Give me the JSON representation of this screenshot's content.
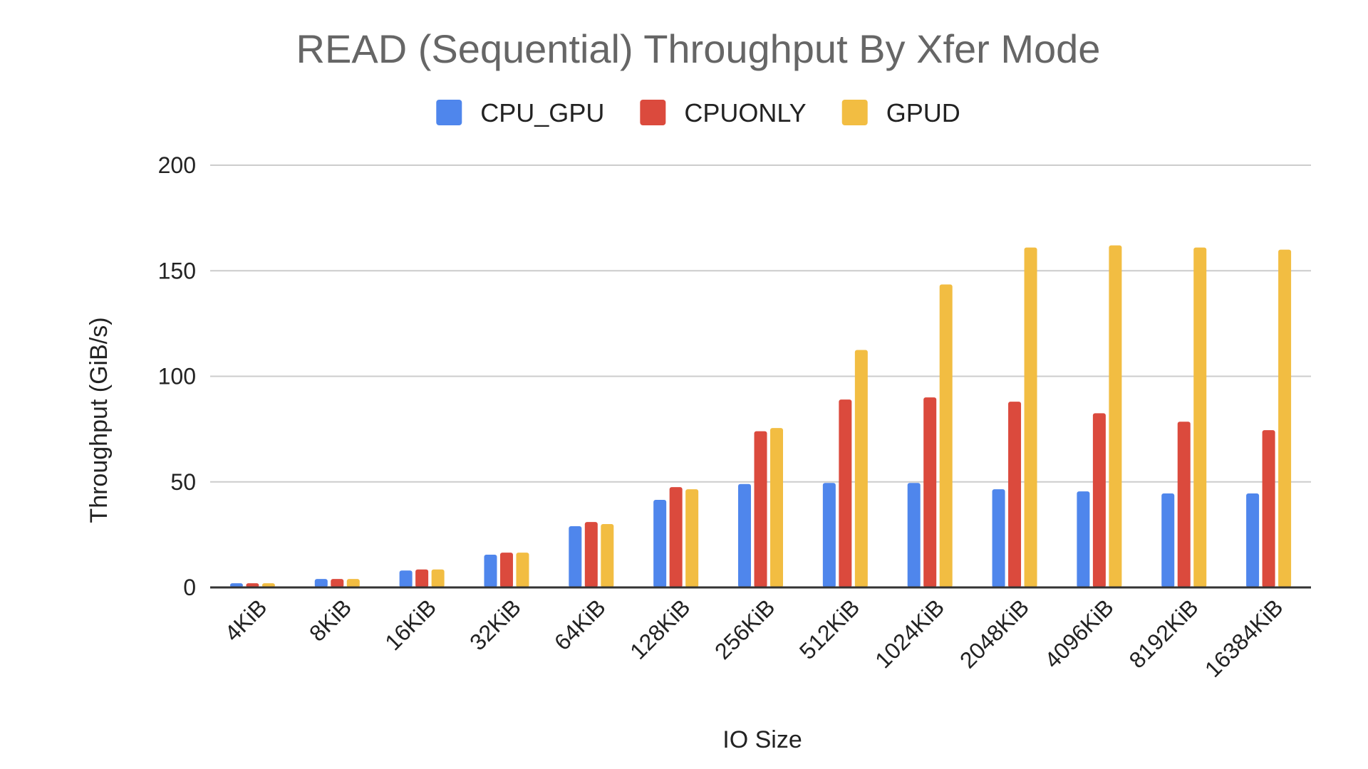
{
  "chart_data": {
    "type": "bar",
    "title": "READ (Sequential) Throughput By Xfer Mode",
    "xlabel": "IO Size",
    "ylabel": "Throughput (GiB/s)",
    "ylim": [
      0,
      200
    ],
    "yticks": [
      0,
      50,
      100,
      150,
      200
    ],
    "grid": true,
    "legend_position": "top-center",
    "categories": [
      "4KiB",
      "8KiB",
      "16KiB",
      "32KiB",
      "64KiB",
      "128KiB",
      "256KiB",
      "512KiB",
      "1024KiB",
      "2048KiB",
      "4096KiB",
      "8192KiB",
      "16384KiB"
    ],
    "series": [
      {
        "name": "CPU_GPU",
        "color": "#4f86ec",
        "values": [
          2,
          4,
          8,
          15.5,
          29,
          41.5,
          49,
          49.5,
          49.5,
          46.5,
          45.5,
          44.5,
          44.5
        ]
      },
      {
        "name": "CPUONLY",
        "color": "#db4a3d",
        "values": [
          2,
          4,
          8.5,
          16.5,
          31,
          47.5,
          74,
          89,
          90,
          88,
          82.5,
          78.5,
          74.5
        ]
      },
      {
        "name": "GPUD",
        "color": "#f2bd42",
        "values": [
          2,
          4,
          8.5,
          16.5,
          30,
          46.5,
          75.5,
          112.5,
          143.5,
          161,
          162,
          161,
          160
        ]
      }
    ]
  }
}
